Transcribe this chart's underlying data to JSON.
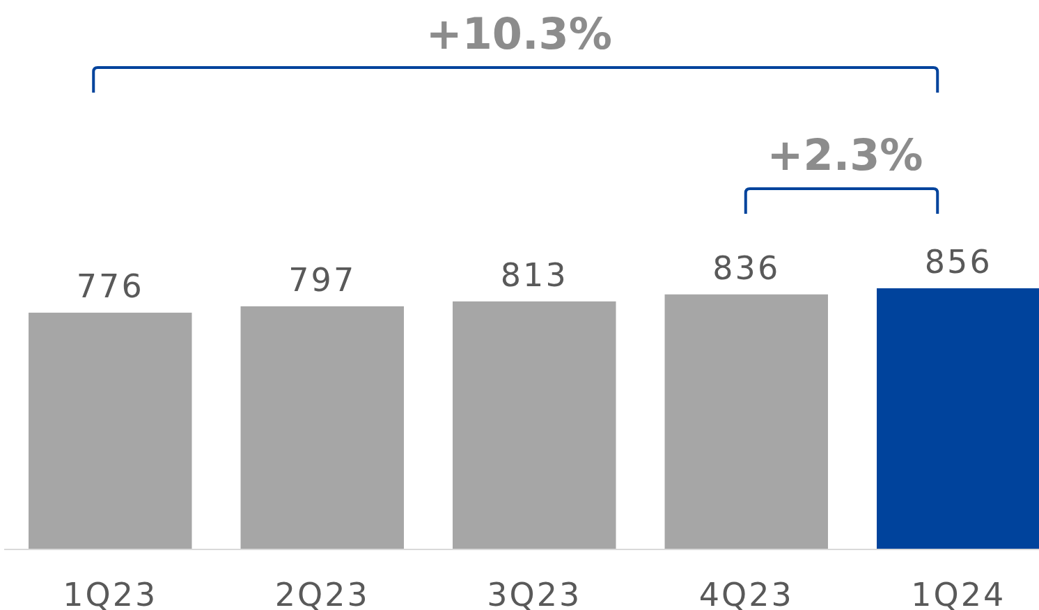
{
  "chart_data": {
    "type": "bar",
    "categories": [
      "1Q23",
      "2Q23",
      "3Q23",
      "4Q23",
      "1Q24"
    ],
    "values": [
      776,
      797,
      813,
      836,
      856
    ],
    "colors": [
      "#a6a6a6",
      "#a6a6a6",
      "#a6a6a6",
      "#a6a6a6",
      "#00439c"
    ],
    "data_labels": true,
    "annotations": [
      "+10.3%",
      "+2.3%"
    ]
  }
}
